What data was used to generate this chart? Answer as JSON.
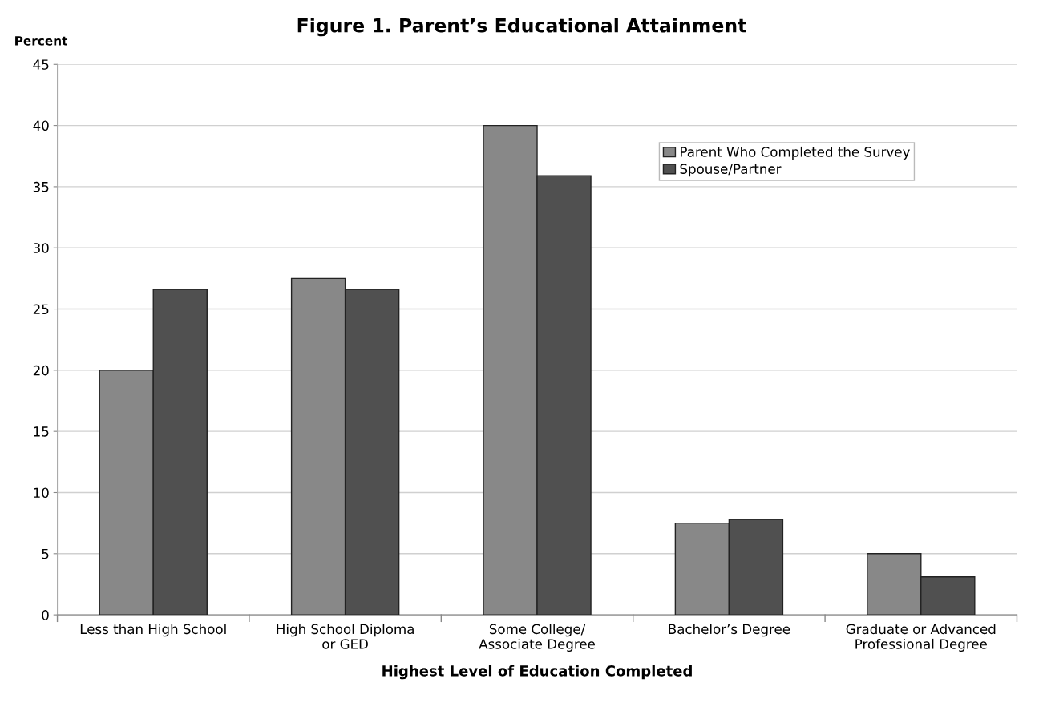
{
  "chart_data": {
    "type": "bar",
    "title": "Figure 1. Parent’s Educational Attainment",
    "ylabel": "Percent",
    "xlabel": "Highest Level of Education Completed",
    "categories": [
      "Less than High School",
      "High School Diploma\nor GED",
      "Some College/\nAssociate Degree",
      "Bachelor’s Degree",
      "Graduate or Advanced\nProfessional Degree"
    ],
    "series": [
      {
        "name": "Parent Who Completed the Survey",
        "color": "#888888",
        "values": [
          20,
          27.5,
          40,
          7.5,
          5
        ]
      },
      {
        "name": "Spouse/Partner",
        "color": "#505050",
        "values": [
          26.6,
          26.6,
          35.9,
          7.8,
          3.1
        ]
      }
    ],
    "ylim": [
      0,
      45
    ],
    "yticks": [
      0,
      5,
      10,
      15,
      20,
      25,
      30,
      35,
      40,
      45
    ],
    "grid": "y",
    "legend": "top right"
  }
}
